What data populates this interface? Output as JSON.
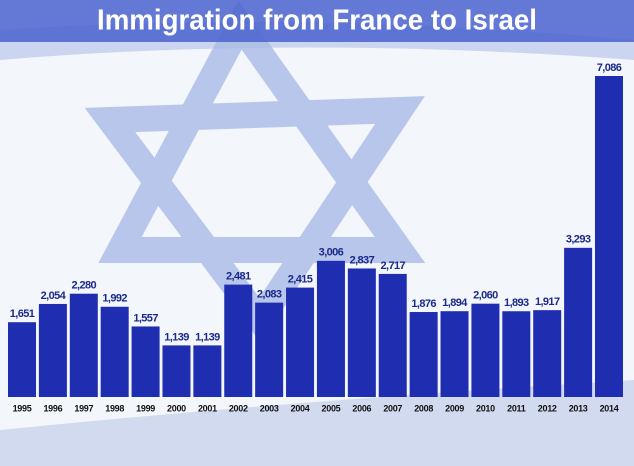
{
  "chart_data": {
    "type": "bar",
    "title": "Immigration from France to Israel",
    "categories": [
      "1995",
      "1996",
      "1997",
      "1998",
      "1999",
      "2000",
      "2001",
      "2002",
      "2003",
      "2004",
      "2005",
      "2006",
      "2007",
      "2008",
      "2009",
      "2010",
      "2011",
      "2012",
      "2013",
      "2014"
    ],
    "values": [
      1651,
      2054,
      2280,
      1992,
      1557,
      1139,
      1139,
      2481,
      2083,
      2415,
      3006,
      2837,
      2717,
      1876,
      1894,
      2060,
      1893,
      1917,
      3293,
      7086
    ],
    "value_labels": [
      "1,651",
      "2,054",
      "2,280",
      "1,992",
      "1,557",
      "1,139",
      "1,139",
      "2,481",
      "2,083",
      "2,415",
      "3,006",
      "2,837",
      "2,717",
      "1,876",
      "1,894",
      "2,060",
      "1,893",
      "1,917",
      "3,293",
      "7,086"
    ],
    "color": "#1f2db0"
  }
}
